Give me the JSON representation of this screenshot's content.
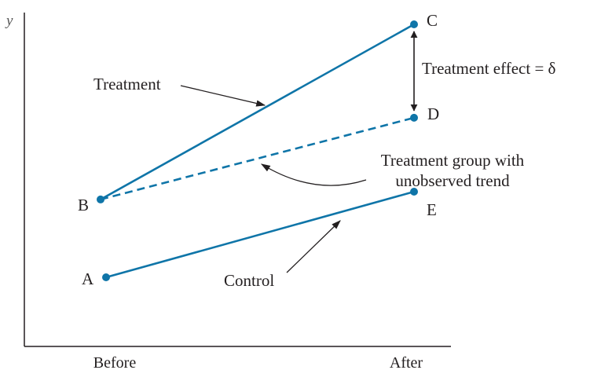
{
  "chart_data": {
    "type": "line",
    "axis": {
      "y_label": "y",
      "x_categories": [
        "Before",
        "After"
      ]
    },
    "points": [
      {
        "id": "A",
        "label": "A",
        "x": "Before",
        "y": 1.0
      },
      {
        "id": "B",
        "label": "B",
        "x": "Before",
        "y": 2.0
      },
      {
        "id": "C",
        "label": "C",
        "x": "After",
        "y": 4.25
      },
      {
        "id": "D",
        "label": "D",
        "x": "After",
        "y": 3.05
      },
      {
        "id": "E",
        "label": "E",
        "x": "After",
        "y": 2.1
      }
    ],
    "series": [
      {
        "name": "Treatment",
        "from": "B",
        "to": "C",
        "style": "solid"
      },
      {
        "name": "Control",
        "from": "A",
        "to": "E",
        "style": "solid"
      },
      {
        "from": "B",
        "to": "D",
        "style": "dashed"
      }
    ],
    "annotations": {
      "treatment": "Treatment",
      "control": "Control",
      "effect": "Treatment effect = δ",
      "trend_line1": "Treatment group with",
      "trend_line2": "unobserved trend"
    },
    "colors": {
      "line": "#0f75a8",
      "axis": "#231f20",
      "text": "#231f20"
    },
    "ylim": [
      0,
      4.5
    ]
  }
}
